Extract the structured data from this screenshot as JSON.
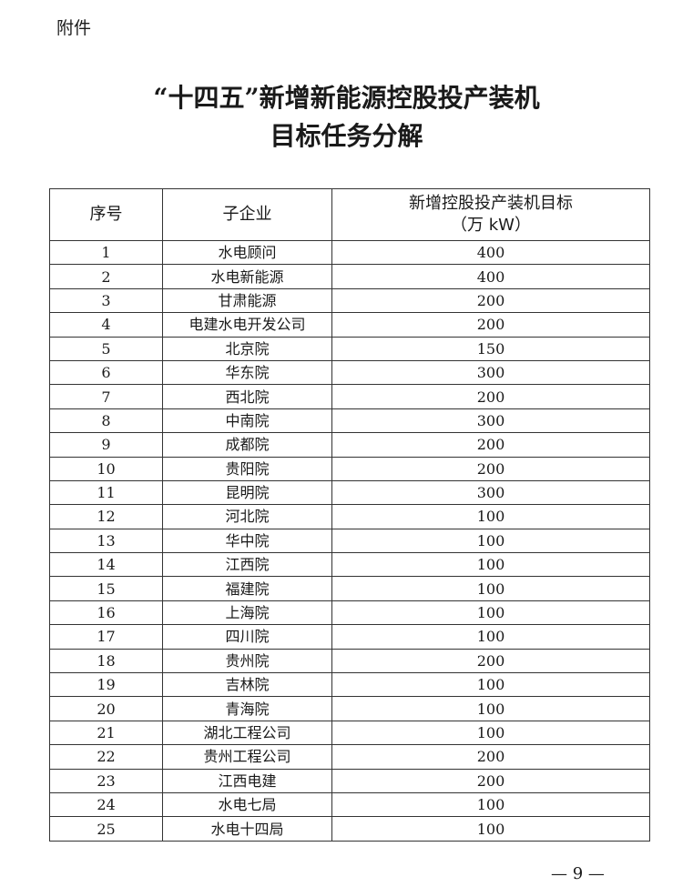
{
  "attachment_label": "附件",
  "title_line1": "“十四五”新增新能源控股投产装机",
  "title_line2": "目标任务分解",
  "table": {
    "headers": [
      "序号",
      "子企业",
      "新增控股投产装机目标",
      "（万 kW）"
    ],
    "rows": [
      [
        "1",
        "水电顾问",
        "400"
      ],
      [
        "2",
        "水电新能源",
        "400"
      ],
      [
        "3",
        "甘肃能源",
        "200"
      ],
      [
        "4",
        "电建水电开发公司",
        "200"
      ],
      [
        "5",
        "北京院",
        "150"
      ],
      [
        "6",
        "华东院",
        "300"
      ],
      [
        "7",
        "西北院",
        "200"
      ],
      [
        "8",
        "中南院",
        "300"
      ],
      [
        "9",
        "成都院",
        "200"
      ],
      [
        "10",
        "贵阳院",
        "200"
      ],
      [
        "11",
        "昆明院",
        "300"
      ],
      [
        "12",
        "河北院",
        "100"
      ],
      [
        "13",
        "华中院",
        "100"
      ],
      [
        "14",
        "江西院",
        "100"
      ],
      [
        "15",
        "福建院",
        "100"
      ],
      [
        "16",
        "上海院",
        "100"
      ],
      [
        "17",
        "四川院",
        "100"
      ],
      [
        "18",
        "贵州院",
        "200"
      ],
      [
        "19",
        "吉林院",
        "100"
      ],
      [
        "20",
        "青海院",
        "100"
      ],
      [
        "21",
        "湖北工程公司",
        "100"
      ],
      [
        "22",
        "贵州工程公司",
        "200"
      ],
      [
        "23",
        "江西电建",
        "200"
      ],
      [
        "24",
        "水电七局",
        "100"
      ],
      [
        "25",
        "水电十四局",
        "100"
      ]
    ]
  },
  "page_number": "— 9 —"
}
